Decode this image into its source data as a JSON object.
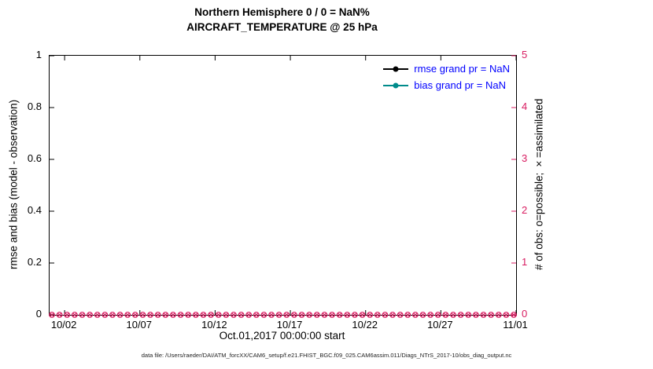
{
  "title": {
    "line1": "Northern Hemisphere 0 / 0 = NaN%",
    "line2": "AIRCRAFT_TEMPERATURE @ 25 hPa"
  },
  "axes": {
    "left": {
      "label": "rmse and bias (model - observation)",
      "ticks": [
        "0",
        "0.2",
        "0.4",
        "0.6",
        "0.8",
        "1"
      ],
      "color": "#000000"
    },
    "right": {
      "label": "# of obs: o=possible; ×=assimilated",
      "ticks": [
        "0",
        "1",
        "2",
        "3",
        "4",
        "5"
      ],
      "color": "#d81b60"
    },
    "x": {
      "ticks": [
        "10/02",
        "10/07",
        "10/12",
        "10/17",
        "10/22",
        "10/27",
        "11/01"
      ],
      "tick_days": [
        1,
        6,
        11,
        16,
        21,
        26,
        31
      ],
      "span_days": 31,
      "label": "Oct.01,2017 00:00:00 start"
    }
  },
  "legend": [
    {
      "label": "rmse grand pr = NaN",
      "color": "#000000"
    },
    {
      "label": "bias grand pr = NaN",
      "color": "#008b8b"
    }
  ],
  "footer": "data file: /Users/raeder/DAI/ATM_forcXX/CAM6_setup/f.e21.FHIST_BGC.f09_025.CAM6assim.011/Diags_NTrS_2017-10/obs_diag_output.nc",
  "chart_data": {
    "type": "line",
    "title": "Northern Hemisphere 0 / 0 = NaN% — AIRCRAFT_TEMPERATURE @ 25 hPa",
    "xlabel": "Oct.01,2017 00:00:00 start",
    "x_tick_labels": [
      "10/02",
      "10/07",
      "10/12",
      "10/17",
      "10/22",
      "10/27",
      "11/01"
    ],
    "x_range_days": [
      0,
      31
    ],
    "y_left": {
      "label": "rmse and bias (model - observation)",
      "range": [
        0,
        1
      ],
      "ticks": [
        0,
        0.2,
        0.4,
        0.6,
        0.8,
        1
      ]
    },
    "y_right": {
      "label": "# of obs: o=possible; ×=assimilated",
      "range": [
        0,
        5
      ],
      "ticks": [
        0,
        1,
        2,
        3,
        4,
        5
      ]
    },
    "grid": false,
    "legend_position": "top-right-inside",
    "series": [
      {
        "name": "rmse grand pr = NaN",
        "type": "line",
        "color": "#000000",
        "values": "NaN (no data plotted)"
      },
      {
        "name": "bias grand pr = NaN",
        "type": "line",
        "color": "#008b8b",
        "values": "NaN (no data plotted)"
      },
      {
        "name": "# of obs possible",
        "type": "marker-o",
        "color": "#d81b60",
        "axis": "right",
        "constant_value": 0,
        "count": 62
      },
      {
        "name": "# of obs assimilated",
        "type": "marker-x",
        "color": "#d81b60",
        "axis": "right",
        "constant_value": 0,
        "count": 62
      }
    ]
  }
}
